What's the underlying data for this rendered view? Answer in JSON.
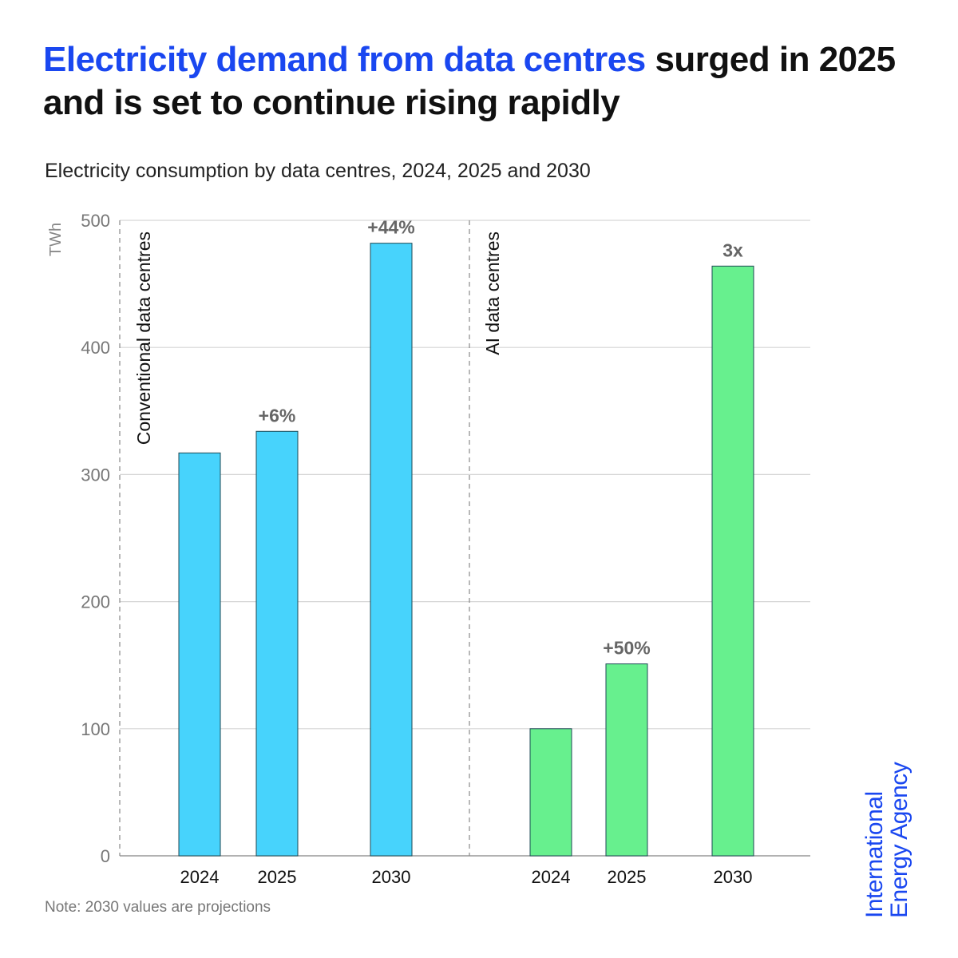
{
  "title": {
    "highlight": "Electricity demand from data centres",
    "rest": " surged in 2025 and is set to continue rising rapidly"
  },
  "subtitle": "Electricity consumption by data centres, 2024, 2025 and 2030",
  "note": "Note: 2030 values are projections",
  "logo": {
    "line1": "International",
    "line2": "Energy Agency"
  },
  "colors": {
    "title_accent": "#1a47f0",
    "conventional": "#47d3fc",
    "ai": "#67f08e",
    "bar_outline": "#1f4a55"
  },
  "chart_data": {
    "type": "bar",
    "ylabel": "TWh",
    "ylim": [
      0,
      500
    ],
    "yticks": [
      0,
      100,
      200,
      300,
      400,
      500
    ],
    "grid": true,
    "groups": [
      {
        "name": "Conventional data centres",
        "color": "#47d3fc",
        "categories": [
          "2024",
          "2025",
          "2030"
        ],
        "values": [
          317,
          334,
          482
        ],
        "labels": [
          "",
          "+6%",
          "+44%"
        ]
      },
      {
        "name": "AI data centres",
        "color": "#67f08e",
        "categories": [
          "2024",
          "2025",
          "2030"
        ],
        "values": [
          100,
          151,
          464
        ],
        "labels": [
          "",
          "+50%",
          "3x"
        ]
      }
    ]
  }
}
